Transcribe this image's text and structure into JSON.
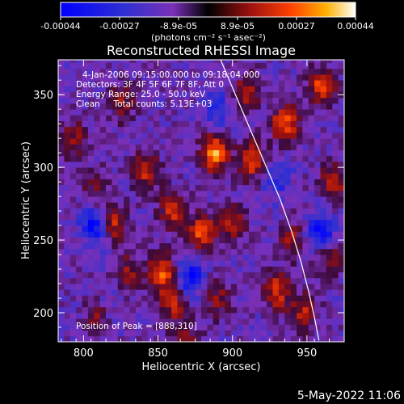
{
  "chart_data": {
    "type": "heatmap",
    "title": "Reconstructed RHESSI Image",
    "xlabel": "Heliocentric X (arcsec)",
    "ylabel": "Heliocentric Y (arcsec)",
    "xlim": [
      783,
      975
    ],
    "ylim": [
      180,
      374
    ],
    "x_ticks": [
      800,
      850,
      900,
      950
    ],
    "y_ticks": [
      200,
      250,
      300,
      350
    ],
    "colorbar": {
      "ticks": [
        "-0.00044",
        "-0.00027",
        "-8.9e-05",
        "8.9e-05",
        "0.00027",
        "0.00044"
      ],
      "range": [
        -0.00044,
        0.00044
      ],
      "unit_label": "(photons cm⁻² s⁻¹ asec⁻²)"
    },
    "annotations": [
      "4-Jan-2006 09:15:00.000 to 09:18:04.000",
      "Detectors: 3F 4F 5F 6F 7F 8F, Att 0",
      "Energy Range: 25.0 - 50.0 keV",
      "Clean     Total counts: 5.13E+03"
    ],
    "peak_label": "Position of Peak = [888,310]",
    "peak_position": [
      888,
      310
    ],
    "limb_arc": [
      [
        892,
        374
      ],
      [
        902,
        350
      ],
      [
        912,
        326
      ],
      [
        922,
        302
      ],
      [
        932,
        278
      ],
      [
        940,
        255
      ],
      [
        946,
        235
      ],
      [
        951,
        215
      ],
      [
        955,
        197
      ],
      [
        958,
        181
      ]
    ],
    "hotspots": [
      {
        "x": 888,
        "y": 310,
        "v": 1.0
      },
      {
        "x": 913,
        "y": 305,
        "v": 0.75
      },
      {
        "x": 935,
        "y": 330,
        "v": 0.85
      },
      {
        "x": 960,
        "y": 355,
        "v": 0.8
      },
      {
        "x": 968,
        "y": 290,
        "v": 0.6
      },
      {
        "x": 842,
        "y": 298,
        "v": 0.65
      },
      {
        "x": 860,
        "y": 270,
        "v": 0.7
      },
      {
        "x": 880,
        "y": 255,
        "v": 0.8
      },
      {
        "x": 900,
        "y": 262,
        "v": 0.55
      },
      {
        "x": 930,
        "y": 215,
        "v": 0.7
      },
      {
        "x": 948,
        "y": 200,
        "v": 0.6
      },
      {
        "x": 820,
        "y": 262,
        "v": 0.7
      },
      {
        "x": 810,
        "y": 200,
        "v": 0.55
      },
      {
        "x": 853,
        "y": 228,
        "v": 0.85
      },
      {
        "x": 860,
        "y": 205,
        "v": 0.55
      },
      {
        "x": 890,
        "y": 210,
        "v": 0.45
      },
      {
        "x": 793,
        "y": 320,
        "v": 0.5
      },
      {
        "x": 826,
        "y": 345,
        "v": 0.45
      },
      {
        "x": 910,
        "y": 352,
        "v": 0.55
      },
      {
        "x": 965,
        "y": 240,
        "v": 0.55
      },
      {
        "x": 830,
        "y": 228,
        "v": 0.5
      },
      {
        "x": 870,
        "y": 180,
        "v": 0.45
      },
      {
        "x": 940,
        "y": 250,
        "v": 0.5
      },
      {
        "x": 808,
        "y": 286,
        "v": 0.4
      }
    ],
    "coldspots": [
      {
        "x": 808,
        "y": 260,
        "v": -0.7
      },
      {
        "x": 960,
        "y": 255,
        "v": -0.75
      },
      {
        "x": 872,
        "y": 225,
        "v": -0.6
      },
      {
        "x": 890,
        "y": 340,
        "v": -0.4
      },
      {
        "x": 930,
        "y": 290,
        "v": -0.35
      },
      {
        "x": 815,
        "y": 205,
        "v": -0.3
      }
    ]
  },
  "footer": {
    "timestamp": "5-May-2022 11:06"
  }
}
